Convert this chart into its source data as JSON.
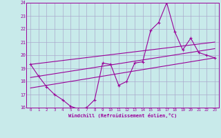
{
  "xlabel": "Windchill (Refroidissement éolien,°C)",
  "background_color": "#c8eaea",
  "grid_color": "#aaaacc",
  "line_color": "#990099",
  "xlim": [
    -0.5,
    23.5
  ],
  "ylim": [
    16,
    24
  ],
  "xticks": [
    0,
    1,
    2,
    3,
    4,
    5,
    6,
    7,
    8,
    9,
    10,
    11,
    12,
    13,
    14,
    15,
    16,
    17,
    18,
    19,
    20,
    21,
    22,
    23
  ],
  "yticks": [
    16,
    17,
    18,
    19,
    20,
    21,
    22,
    23,
    24
  ],
  "main_line": {
    "x": [
      0,
      1,
      2,
      3,
      4,
      5,
      6,
      7,
      8,
      9,
      10,
      11,
      12,
      13,
      14,
      15,
      16,
      17,
      18,
      19,
      20,
      21,
      22,
      23
    ],
    "y": [
      19.3,
      18.4,
      17.6,
      17.0,
      16.6,
      16.1,
      15.9,
      16.0,
      16.6,
      19.4,
      19.3,
      17.7,
      18.0,
      19.4,
      19.5,
      21.9,
      22.5,
      24.0,
      21.8,
      20.4,
      21.3,
      20.2,
      20.0,
      19.8
    ]
  },
  "regression_lines": [
    {
      "x0": 0,
      "y0": 19.3,
      "x1": 23,
      "y1": 21.0
    },
    {
      "x0": 0,
      "y0": 18.3,
      "x1": 23,
      "y1": 20.5
    },
    {
      "x0": 0,
      "y0": 17.5,
      "x1": 23,
      "y1": 19.8
    }
  ]
}
